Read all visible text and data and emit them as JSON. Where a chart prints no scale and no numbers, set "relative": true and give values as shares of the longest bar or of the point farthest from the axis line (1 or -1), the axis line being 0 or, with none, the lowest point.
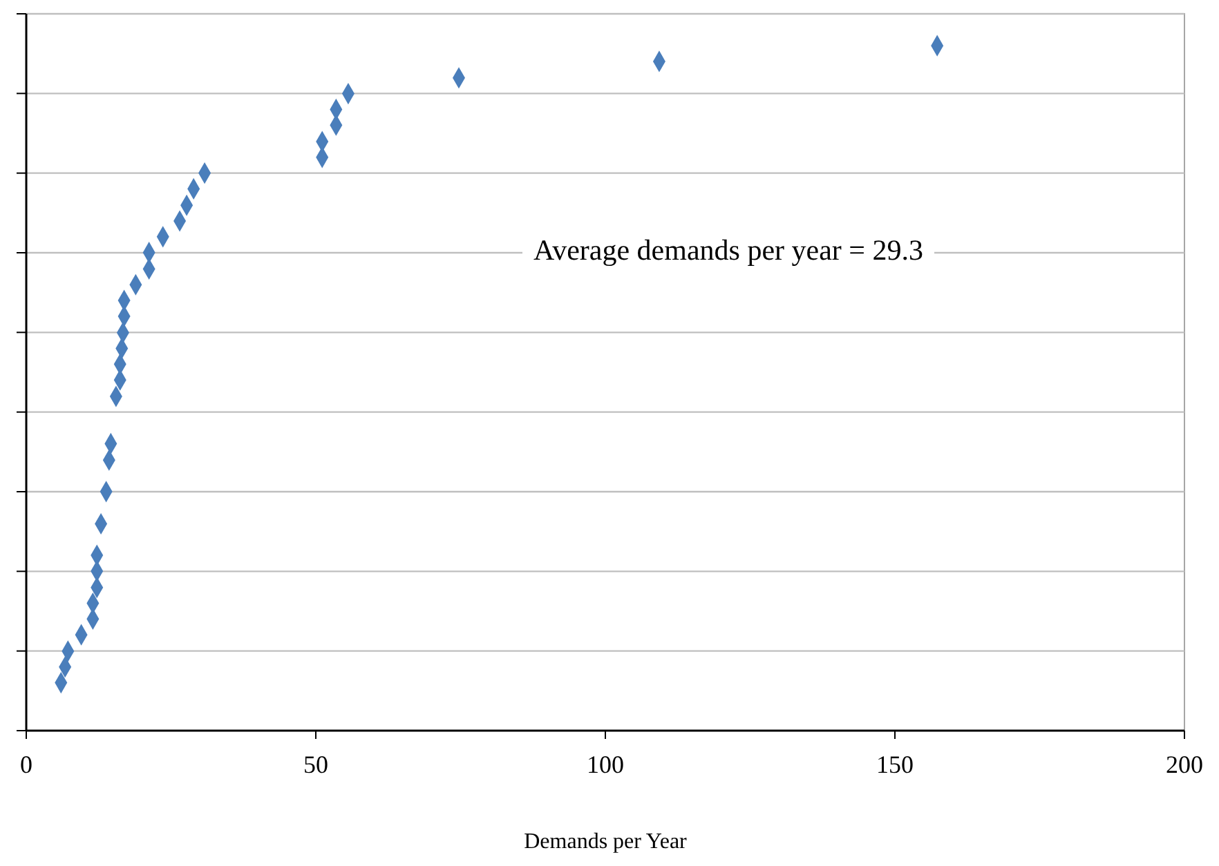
{
  "chart_data": {
    "type": "scatter",
    "xlabel": "Demands per Year",
    "annotations": [
      "Average demands per year = 29.3"
    ],
    "relative": true,
    "marker": "diamond",
    "grid": "y",
    "xlim": [
      0,
      200
    ],
    "xticks": [
      0,
      50,
      100,
      150,
      200
    ],
    "series": [
      {
        "color": "#4a7ebb",
        "x": [
          6.0,
          6.7,
          7.2,
          9.5,
          11.5,
          11.5,
          12.2,
          12.2,
          12.2,
          12.9,
          13.8,
          14.3,
          14.6,
          15.5,
          16.2,
          16.2,
          16.5,
          16.7,
          16.9,
          16.9,
          18.9,
          21.2,
          21.2,
          23.6,
          26.5,
          27.7,
          28.9,
          30.8,
          51.1,
          51.1,
          53.5,
          53.5,
          55.6,
          74.7,
          109.3,
          157.3
        ],
        "values": [
          0.07,
          0.093,
          0.116,
          0.14,
          0.163,
          0.186,
          0.209,
          0.233,
          0.256,
          0.302,
          0.349,
          0.395,
          0.419,
          0.488,
          0.512,
          0.535,
          0.558,
          0.581,
          0.605,
          0.628,
          0.651,
          0.674,
          0.698,
          0.721,
          0.744,
          0.767,
          0.791,
          0.814,
          0.837,
          0.86,
          0.884,
          0.907,
          0.93,
          0.953,
          0.977,
          1.0
        ]
      }
    ]
  }
}
